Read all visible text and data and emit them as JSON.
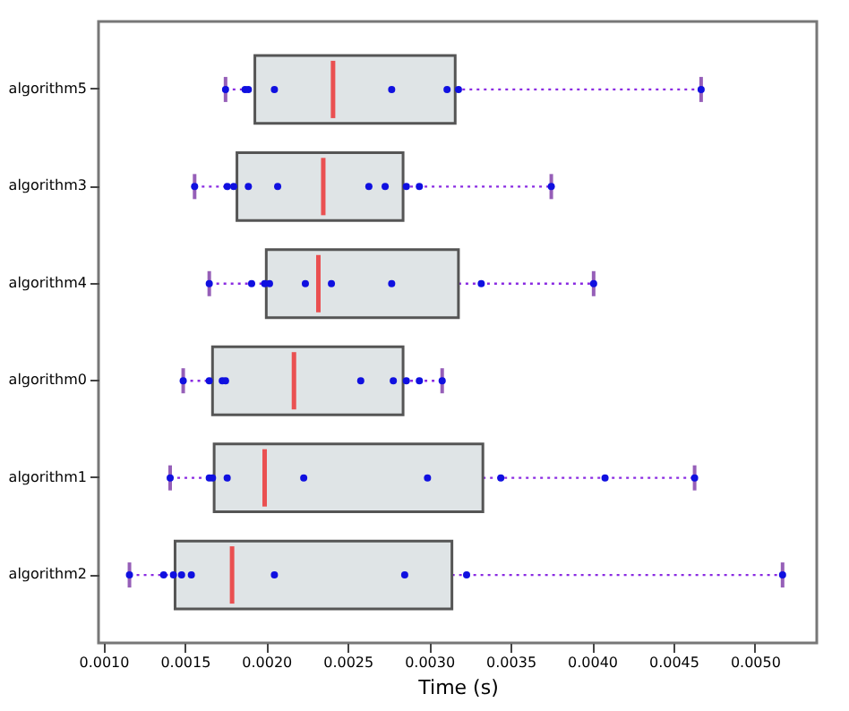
{
  "chart_data": {
    "type": "box",
    "orientation": "horizontal",
    "xlabel": "Time (s)",
    "categories": [
      "algorithm5",
      "algorithm3",
      "algorithm4",
      "algorithm0",
      "algorithm1",
      "algorithm2"
    ],
    "xlim": [
      0.00097,
      0.00538
    ],
    "xticks": [
      {
        "value": 0.001,
        "label": "0.0010"
      },
      {
        "value": 0.0015,
        "label": "0.0015"
      },
      {
        "value": 0.002,
        "label": "0.0020"
      },
      {
        "value": 0.0025,
        "label": "0.0025"
      },
      {
        "value": 0.003,
        "label": "0.0030"
      },
      {
        "value": 0.0035,
        "label": "0.0035"
      },
      {
        "value": 0.004,
        "label": "0.0040"
      },
      {
        "value": 0.0045,
        "label": "0.0045"
      },
      {
        "value": 0.005,
        "label": "0.0050"
      }
    ],
    "grid": false,
    "line_style": "dotted",
    "series": [
      {
        "color": "#dfe4e6",
        "boxes": [
          {
            "low": 0.00175,
            "q1": 0.00193,
            "median": 0.00241,
            "q3": 0.00316,
            "high": 0.00467
          },
          {
            "low": 0.00156,
            "q1": 0.00182,
            "median": 0.00235,
            "q3": 0.00284,
            "high": 0.00375
          },
          {
            "low": 0.00165,
            "q1": 0.002,
            "median": 0.00232,
            "q3": 0.00318,
            "high": 0.00401
          },
          {
            "low": 0.00149,
            "q1": 0.00167,
            "median": 0.00217,
            "q3": 0.00284,
            "high": 0.00308
          },
          {
            "low": 0.00141,
            "q1": 0.00168,
            "median": 0.00199,
            "q3": 0.00333,
            "high": 0.00463
          },
          {
            "low": 0.00116,
            "q1": 0.00144,
            "median": 0.00179,
            "q3": 0.00314,
            "high": 0.00517
          }
        ]
      },
      {
        "type": "scatter",
        "color": "#1010e0",
        "marker": "circle",
        "x": [
          "algorithm5",
          "algorithm5",
          "algorithm5",
          "algorithm5",
          "algorithm5",
          "algorithm5",
          "algorithm5",
          "algorithm5",
          "algorithm3",
          "algorithm3",
          "algorithm3",
          "algorithm3",
          "algorithm3",
          "algorithm3",
          "algorithm3",
          "algorithm3",
          "algorithm3",
          "algorithm3",
          "algorithm4",
          "algorithm4",
          "algorithm4",
          "algorithm4",
          "algorithm4",
          "algorithm4",
          "algorithm4",
          "algorithm4",
          "algorithm4",
          "algorithm0",
          "algorithm0",
          "algorithm0",
          "algorithm0",
          "algorithm0",
          "algorithm0",
          "algorithm0",
          "algorithm0",
          "algorithm0",
          "algorithm1",
          "algorithm1",
          "algorithm1",
          "algorithm1",
          "algorithm1",
          "algorithm1",
          "algorithm1",
          "algorithm1",
          "algorithm1",
          "algorithm2",
          "algorithm2",
          "algorithm2",
          "algorithm2",
          "algorithm2",
          "algorithm2",
          "algorithm2",
          "algorithm2",
          "algorithm2"
        ],
        "values": [
          0.00175,
          0.00187,
          0.00189,
          0.00205,
          0.00277,
          0.00311,
          0.00318,
          0.00467,
          0.00156,
          0.00176,
          0.0018,
          0.00189,
          0.00207,
          0.00263,
          0.00273,
          0.00286,
          0.00294,
          0.00375,
          0.00165,
          0.00191,
          0.00199,
          0.00202,
          0.00224,
          0.0024,
          0.00277,
          0.00332,
          0.00401,
          0.00149,
          0.00165,
          0.00173,
          0.00175,
          0.00258,
          0.00278,
          0.00286,
          0.00294,
          0.00308,
          0.00141,
          0.00165,
          0.00167,
          0.00176,
          0.00223,
          0.00299,
          0.00344,
          0.00408,
          0.00463,
          0.00116,
          0.00137,
          0.00143,
          0.00148,
          0.00154,
          0.00205,
          0.00285,
          0.00323,
          0.00517
        ]
      }
    ]
  }
}
